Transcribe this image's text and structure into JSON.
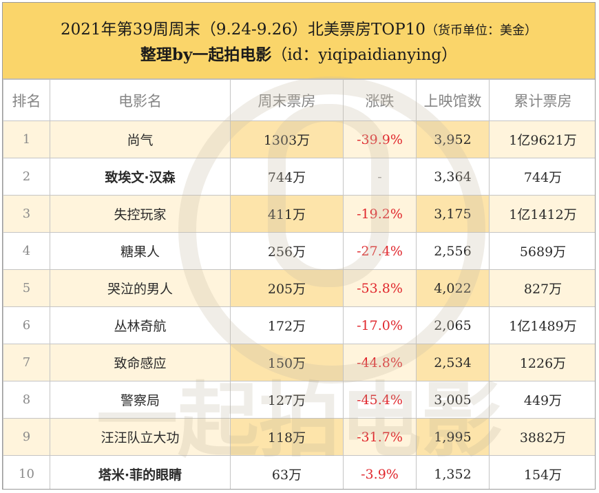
{
  "header": {
    "title_main": "2021年第39周周末（9.24-9.26）北美票房TOP10",
    "title_unit": "（货币单位：美金）",
    "subtitle_bold": "整理by一起拍电影",
    "subtitle_id": "（id：yiqipaidianying）"
  },
  "columns": [
    "排名",
    "电影名",
    "周末票房",
    "涨跌",
    "上映馆数",
    "累计票房"
  ],
  "rows": [
    {
      "rank": "1",
      "title": "尚气",
      "weekend": "1303万",
      "change": "-39.9%",
      "theaters": "3,952",
      "total": "1亿9621万"
    },
    {
      "rank": "2",
      "title": "致埃文·汉森",
      "weekend": "744万",
      "change": "-",
      "theaters": "3,364",
      "total": "744万"
    },
    {
      "rank": "3",
      "title": "失控玩家",
      "weekend": "411万",
      "change": "-19.2%",
      "theaters": "3,175",
      "total": "1亿1412万"
    },
    {
      "rank": "4",
      "title": "糖果人",
      "weekend": "256万",
      "change": "-27.4%",
      "theaters": "2,556",
      "total": "5689万"
    },
    {
      "rank": "5",
      "title": "哭泣的男人",
      "weekend": "205万",
      "change": "-53.8%",
      "theaters": "4,022",
      "total": "827万"
    },
    {
      "rank": "6",
      "title": "丛林奇航",
      "weekend": "172万",
      "change": "-17.0%",
      "theaters": "2,065",
      "total": "1亿1489万"
    },
    {
      "rank": "7",
      "title": "致命感应",
      "weekend": "150万",
      "change": "-44.8%",
      "theaters": "2,534",
      "total": "1226万"
    },
    {
      "rank": "8",
      "title": "警察局",
      "weekend": "127万",
      "change": "-45.4%",
      "theaters": "3,005",
      "total": "449万"
    },
    {
      "rank": "9",
      "title": "汪汪队立大功",
      "weekend": "118万",
      "change": "-31.7%",
      "theaters": "1,995",
      "total": "3882万"
    },
    {
      "rank": "10",
      "title": "塔米·菲的眼睛",
      "weekend": "63万",
      "change": "-3.9%",
      "theaters": "1,352",
      "total": "154万"
    }
  ],
  "watermark_text": "一起拍电影",
  "colors": {
    "header_bg": "#fad56a",
    "row_tint": "#fff4dc",
    "highlight": "#fde4aa",
    "negative": "#e0272d"
  }
}
